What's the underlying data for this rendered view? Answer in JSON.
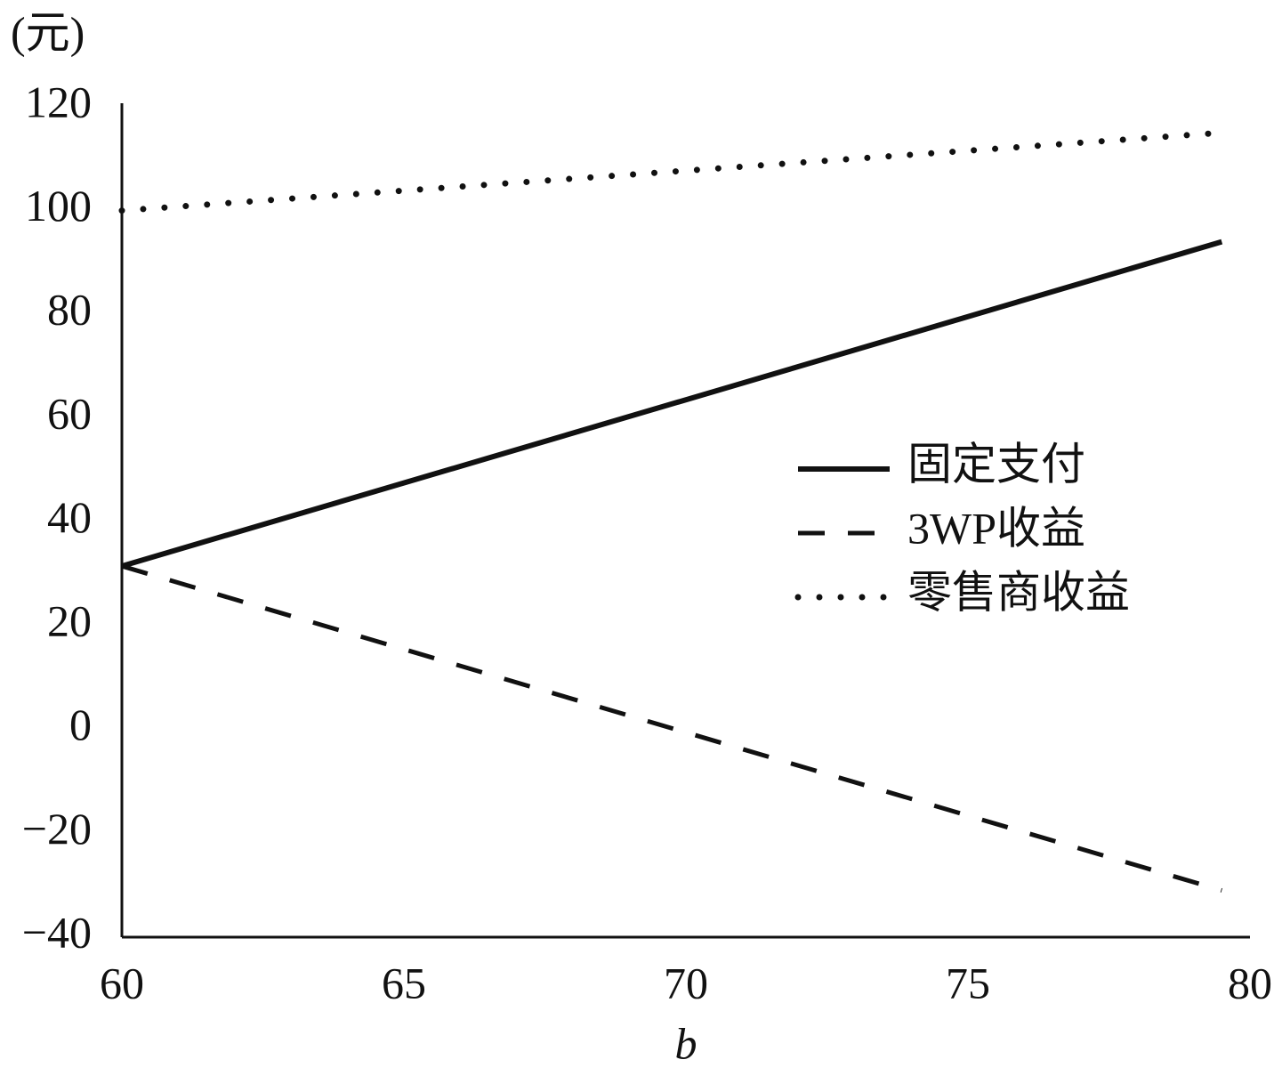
{
  "chart_data": {
    "type": "line",
    "y_label": "(元)",
    "x_label": "b",
    "x": [
      60,
      79.5
    ],
    "series": [
      {
        "name": "固定支付",
        "color": "#111111",
        "style": "solid",
        "values": [
          31.5,
          94
        ]
      },
      {
        "name": "3WP收益",
        "color": "#111111",
        "style": "dashed",
        "values": [
          31.5,
          -31
        ]
      },
      {
        "name": "零售商收益",
        "color": "#111111",
        "style": "dotted",
        "values": [
          100,
          115
        ]
      }
    ],
    "xlim": [
      60,
      80
    ],
    "xticks": [
      60,
      65,
      70,
      75,
      80
    ],
    "ylim": [
      -40,
      120
    ],
    "yticks": [
      {
        "value": -40,
        "label": "−40"
      },
      {
        "value": -20,
        "label": "−20"
      },
      0,
      20,
      40,
      60,
      80,
      100,
      120
    ],
    "grid": false,
    "legend": "right"
  }
}
